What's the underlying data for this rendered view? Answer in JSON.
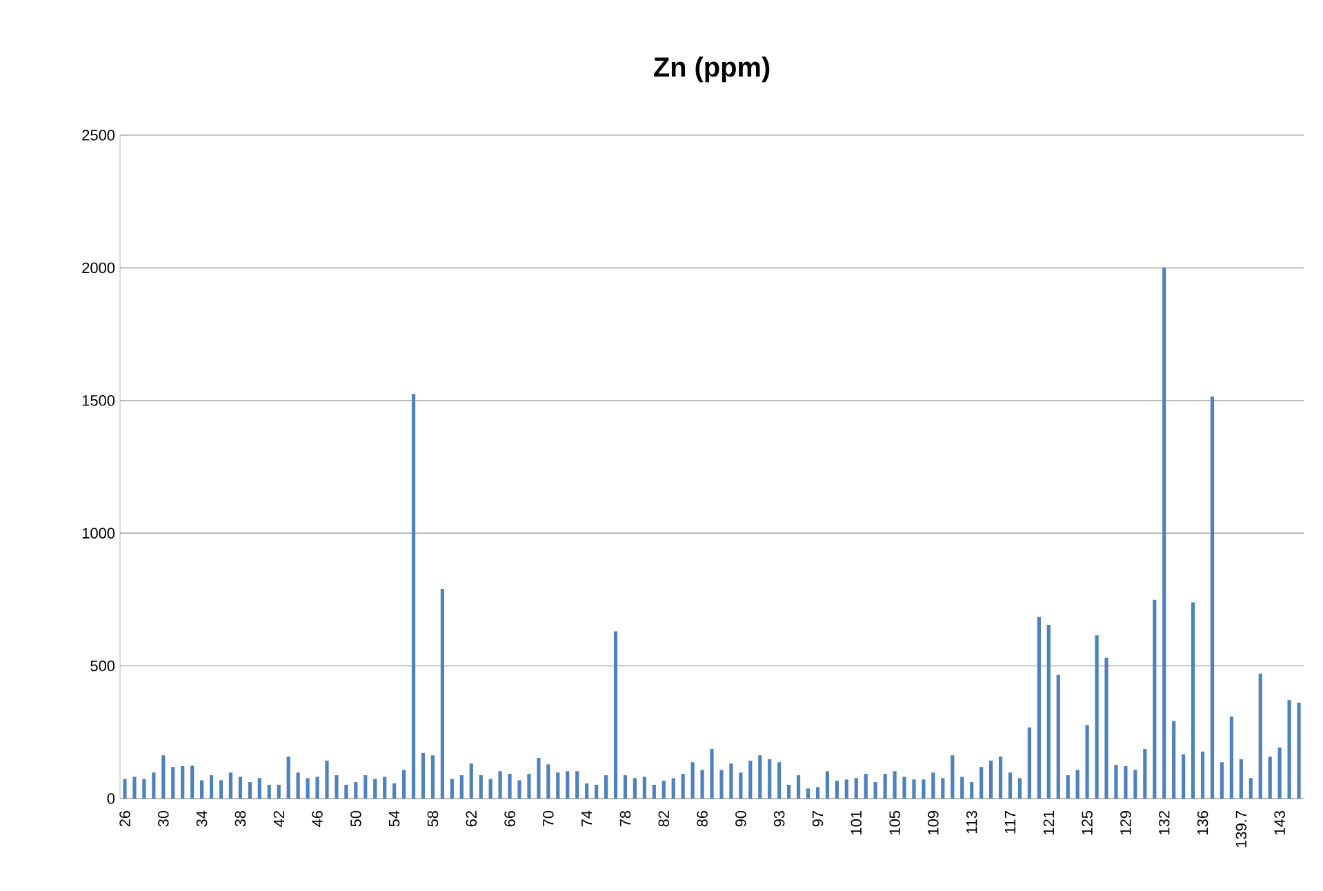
{
  "chart_data": {
    "type": "bar",
    "title": "Zn (ppm)",
    "categories": [
      "26",
      null,
      null,
      null,
      "30",
      null,
      null,
      null,
      "34",
      null,
      null,
      null,
      "38",
      null,
      null,
      null,
      "42",
      null,
      null,
      null,
      "46",
      null,
      null,
      null,
      "50",
      null,
      null,
      null,
      "54",
      null,
      null,
      null,
      "58",
      null,
      null,
      null,
      "62",
      null,
      null,
      null,
      "66",
      null,
      null,
      null,
      "70",
      null,
      null,
      null,
      "74",
      null,
      null,
      null,
      "78",
      null,
      null,
      null,
      "82",
      null,
      null,
      null,
      "86",
      null,
      null,
      null,
      "90",
      null,
      null,
      null,
      "93",
      null,
      null,
      null,
      "97",
      null,
      null,
      null,
      "101",
      null,
      null,
      null,
      "105",
      null,
      null,
      null,
      "109",
      null,
      null,
      null,
      "113",
      null,
      null,
      null,
      "117",
      null,
      null,
      null,
      "121",
      null,
      null,
      null,
      "125",
      null,
      null,
      null,
      "129",
      null,
      null,
      null,
      "132",
      null,
      null,
      null,
      "136",
      null,
      null,
      null,
      "139.7",
      null,
      null,
      null,
      "143",
      null,
      null
    ],
    "values": [
      74,
      82,
      74,
      98,
      163,
      119,
      122,
      124,
      69,
      88,
      69,
      98,
      82,
      62,
      77,
      52,
      52,
      158,
      98,
      77,
      82,
      143,
      88,
      52,
      62,
      88,
      74,
      82,
      57,
      108,
      1525,
      172,
      163,
      790,
      74,
      88,
      132,
      88,
      74,
      103,
      93,
      69,
      93,
      153,
      129,
      98,
      103,
      103,
      57,
      52,
      88,
      630,
      88,
      77,
      82,
      52,
      67,
      77,
      93,
      137,
      108,
      187,
      108,
      132,
      98,
      143,
      163,
      148,
      137,
      52,
      88,
      38,
      43,
      103,
      67,
      72,
      77,
      93,
      62,
      93,
      103,
      82,
      72,
      72,
      98,
      77,
      163,
      82,
      62,
      119,
      143,
      158,
      98,
      77,
      268,
      684,
      655,
      466,
      88,
      108,
      277,
      615,
      531,
      127,
      122,
      108,
      187,
      749,
      2000,
      292,
      167,
      739,
      177,
      1515,
      137,
      309,
      148,
      77,
      471,
      158,
      192,
      371,
      361
    ],
    "color": "#4f81bd",
    "ylim": [
      0,
      2500
    ],
    "yticks": [
      0,
      500,
      1000,
      1500,
      2000,
      2500
    ],
    "grid": "y"
  }
}
